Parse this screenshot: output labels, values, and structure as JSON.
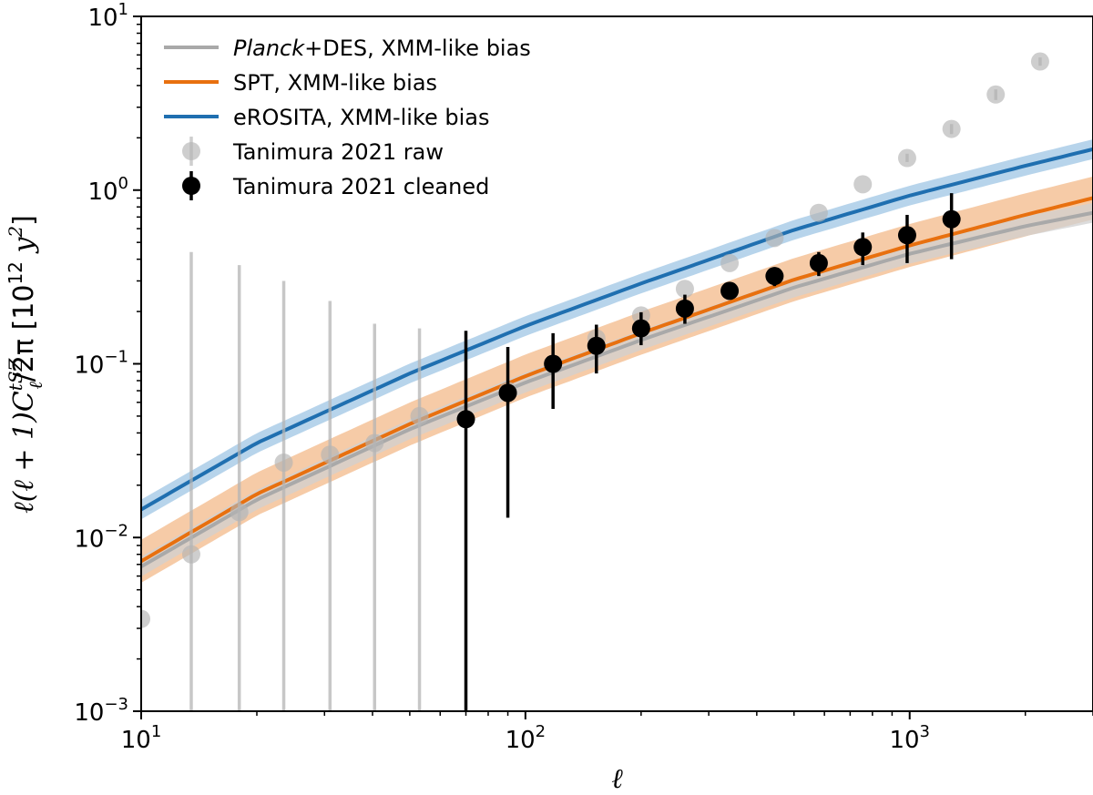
{
  "chart_data": {
    "type": "line",
    "xscale": "log",
    "yscale": "log",
    "xlim": [
      10,
      3000
    ],
    "ylim": [
      0.001,
      10
    ],
    "xlabel": "ℓ",
    "ylabel": "ℓ(ℓ + 1)C",
    "ylabel_sub": "ℓ",
    "ylabel_sup": "tSZ",
    "ylabel_rest": "/2π [10",
    "ylabel_unit_sup": "12",
    "ylabel_unit_tail": " y",
    "ylabel_unit_tail_sup": "2",
    "ylabel_close": "]",
    "x_ticks": [
      {
        "value": 10,
        "base": "10",
        "exp": "1"
      },
      {
        "value": 100,
        "base": "10",
        "exp": "2"
      },
      {
        "value": 1000,
        "base": "10",
        "exp": "3"
      }
    ],
    "y_ticks": [
      {
        "value": 0.001,
        "base": "10",
        "exp": "−3"
      },
      {
        "value": 0.01,
        "base": "10",
        "exp": "−2"
      },
      {
        "value": 0.1,
        "base": "10",
        "exp": "−1"
      },
      {
        "value": 1,
        "base": "10",
        "exp": "0"
      },
      {
        "value": 10,
        "base": "10",
        "exp": "1"
      }
    ],
    "model_series": [
      {
        "name": "Planck+DES, XMM-like bias",
        "name_italic": "Planck",
        "name_rest": "+DES, XMM-like bias",
        "color": "#a9a9a9",
        "band_color": "#d0d0d0",
        "x": [
          10,
          20,
          50,
          100,
          200,
          500,
          1000,
          2000,
          3000
        ],
        "y": [
          0.0068,
          0.0165,
          0.042,
          0.078,
          0.137,
          0.275,
          0.43,
          0.62,
          0.74
        ],
        "band_frac": 0.14
      },
      {
        "name": "SPT, XMM-like bias",
        "color": "#e8700f",
        "band_color": "#f3b98a",
        "x": [
          10,
          20,
          50,
          100,
          200,
          500,
          1000,
          2000,
          3000
        ],
        "y": [
          0.0073,
          0.0178,
          0.045,
          0.085,
          0.15,
          0.305,
          0.48,
          0.72,
          0.9
        ],
        "band_frac": 0.33
      },
      {
        "name": "eROSITA, XMM-like bias",
        "color": "#1f6fb0",
        "band_color": "#9fc6e4",
        "x": [
          10,
          20,
          50,
          100,
          200,
          500,
          1000,
          2000,
          3000
        ],
        "y": [
          0.0145,
          0.035,
          0.088,
          0.165,
          0.29,
          0.59,
          0.93,
          1.38,
          1.72
        ],
        "band_frac": 0.14
      }
    ],
    "data_series": [
      {
        "name": "Tanimura 2021 raw",
        "color": "#b4b4b4",
        "points": [
          {
            "x": 10,
            "y": 0.0034,
            "lo": null,
            "hi": null
          },
          {
            "x": 13.5,
            "y": 0.008,
            "lo": 0.001,
            "hi": 0.44
          },
          {
            "x": 18,
            "y": 0.014,
            "lo": 0.001,
            "hi": 0.37
          },
          {
            "x": 23.5,
            "y": 0.027,
            "lo": 0.001,
            "hi": 0.3
          },
          {
            "x": 31,
            "y": 0.03,
            "lo": 0.001,
            "hi": 0.23
          },
          {
            "x": 40.5,
            "y": 0.035,
            "lo": 0.001,
            "hi": 0.17
          },
          {
            "x": 53,
            "y": 0.05,
            "lo": 0.001,
            "hi": 0.16
          },
          {
            "x": 70,
            "y": 0.048,
            "lo": null,
            "hi": null
          },
          {
            "x": 90,
            "y": 0.07,
            "lo": null,
            "hi": null
          },
          {
            "x": 118,
            "y": 0.1,
            "lo": null,
            "hi": null
          },
          {
            "x": 153,
            "y": 0.14,
            "lo": null,
            "hi": null
          },
          {
            "x": 200,
            "y": 0.19,
            "lo": null,
            "hi": null
          },
          {
            "x": 260,
            "y": 0.27,
            "lo": null,
            "hi": null
          },
          {
            "x": 340,
            "y": 0.38,
            "lo": null,
            "hi": null
          },
          {
            "x": 445,
            "y": 0.53,
            "lo": null,
            "hi": null
          },
          {
            "x": 580,
            "y": 0.74,
            "lo": null,
            "hi": null
          },
          {
            "x": 755,
            "y": 1.08,
            "lo": null,
            "hi": null
          },
          {
            "x": 985,
            "y": 1.53,
            "lo": 1.45,
            "hi": 1.62
          },
          {
            "x": 1285,
            "y": 2.25,
            "lo": 2.1,
            "hi": 2.4
          },
          {
            "x": 1675,
            "y": 3.55,
            "lo": 3.3,
            "hi": 3.8
          },
          {
            "x": 2185,
            "y": 5.5,
            "lo": 5.2,
            "hi": 5.8
          }
        ]
      },
      {
        "name": "Tanimura 2021 cleaned",
        "color": "#000000",
        "points": [
          {
            "x": 70,
            "y": 0.048,
            "lo": 0.001,
            "hi": 0.155
          },
          {
            "x": 90,
            "y": 0.068,
            "lo": 0.013,
            "hi": 0.125
          },
          {
            "x": 118,
            "y": 0.1,
            "lo": 0.055,
            "hi": 0.15
          },
          {
            "x": 153,
            "y": 0.127,
            "lo": 0.088,
            "hi": 0.168
          },
          {
            "x": 200,
            "y": 0.16,
            "lo": 0.128,
            "hi": 0.198
          },
          {
            "x": 260,
            "y": 0.208,
            "lo": 0.17,
            "hi": 0.25
          },
          {
            "x": 340,
            "y": 0.263,
            "lo": 0.24,
            "hi": 0.285
          },
          {
            "x": 445,
            "y": 0.32,
            "lo": 0.28,
            "hi": 0.36
          },
          {
            "x": 580,
            "y": 0.38,
            "lo": 0.32,
            "hi": 0.44
          },
          {
            "x": 755,
            "y": 0.47,
            "lo": 0.37,
            "hi": 0.57
          },
          {
            "x": 985,
            "y": 0.55,
            "lo": 0.38,
            "hi": 0.72
          },
          {
            "x": 1285,
            "y": 0.68,
            "lo": 0.4,
            "hi": 0.96
          }
        ]
      }
    ],
    "legend_position": "top-left"
  }
}
